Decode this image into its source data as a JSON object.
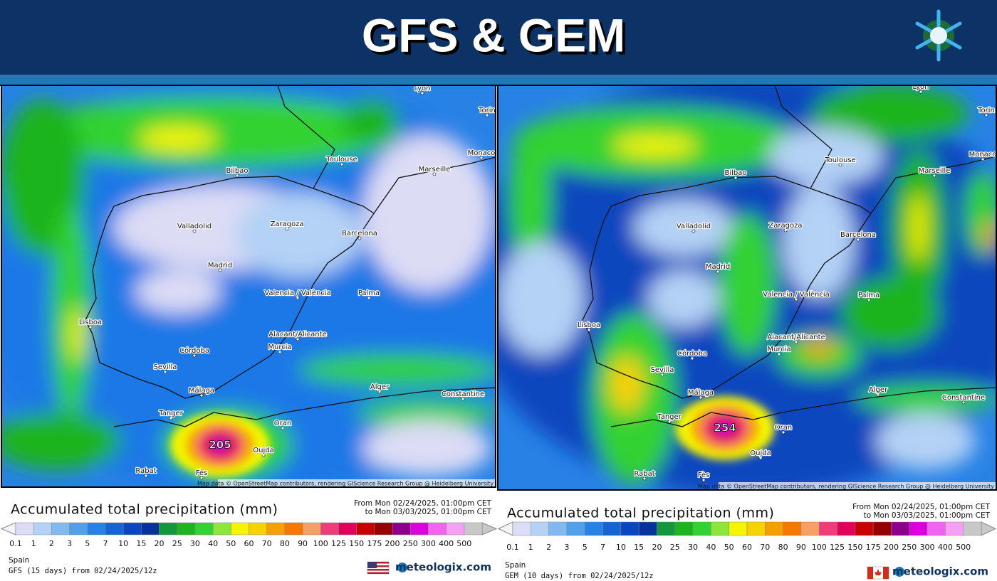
{
  "header": {
    "title": "GFS & GEM"
  },
  "colorbar": {
    "labels": [
      "0.1",
      "1",
      "2",
      "3",
      "5",
      "7",
      "10",
      "15",
      "20",
      "25",
      "30",
      "40",
      "50",
      "60",
      "70",
      "80",
      "90",
      "100",
      "125",
      "150",
      "175",
      "200",
      "250",
      "300",
      "400",
      "500"
    ],
    "colors": [
      "#dcdcf5",
      "#b4d2f5",
      "#82b9f0",
      "#50a0eb",
      "#2882e6",
      "#1464d2",
      "#0a46be",
      "#06329b",
      "#14963c",
      "#1eb41e",
      "#32d232",
      "#8ce63c",
      "#f5f500",
      "#f5d200",
      "#f5a000",
      "#f57800",
      "#f5a064",
      "#f03c78",
      "#e1005a",
      "#c80000",
      "#960000",
      "#8c008c",
      "#dc00dc",
      "#f064f0",
      "#f5a0f5"
    ]
  },
  "panels": [
    {
      "cities": [
        "Lyon",
        "Torin",
        "Monaco",
        "Toulouse",
        "Marseille",
        "Bilbao",
        "Valladolid",
        "Zaragoza",
        "Barcelona",
        "Madrid",
        "Valencia / València",
        "Palma",
        "Lisboa",
        "Alacant/Alicante",
        "Córdoba",
        "Murcia",
        "Sevilla",
        "Málaga",
        "Alger",
        "Constantine",
        "Tanger",
        "Oran",
        "Rabat",
        "Fès",
        "Oujda"
      ],
      "max_label": "205",
      "attribution": "Map data © OpenStreetMap contributors, rendering GIScience Research Group @ Heidelberg University",
      "legend_title": "Accumulated total precipitation (mm)",
      "from": "From Mon 02/24/2025, 01:00pm CET",
      "to": "to Mon 03/03/2025, 01:00pm CET",
      "region": "Spain",
      "run": "GFS (15 days) from 02/24/2025/12z",
      "brand": "meteologix.com"
    },
    {
      "cities": [
        "Lyon",
        "Torin",
        "Monaco",
        "Toulouse",
        "Marseille",
        "Bilbao",
        "Valladolid",
        "Zaragoza",
        "Barcelona",
        "Madrid",
        "Valencia / València",
        "Palma",
        "Lisboa",
        "Alacant/Alicante",
        "Córdoba",
        "Murcia",
        "Sevilla",
        "Málaga",
        "Alger",
        "Constantine",
        "Tanger",
        "Oran",
        "Rabat",
        "Fès",
        "Oujda"
      ],
      "max_label": "254",
      "attribution": "Map data © OpenStreetMap contributors, rendering GIScience Research Group @ Heidelberg University",
      "legend_title": "Accumulated total precipitation (mm)",
      "from": "From Mon 02/24/2025, 01:00pm CET",
      "to": "to Mon 03/03/2025, 01:00pm CET",
      "region": "Spain",
      "run": "GEM (10 days) from 02/24/2025/12z",
      "brand": "meteologix.com"
    }
  ]
}
